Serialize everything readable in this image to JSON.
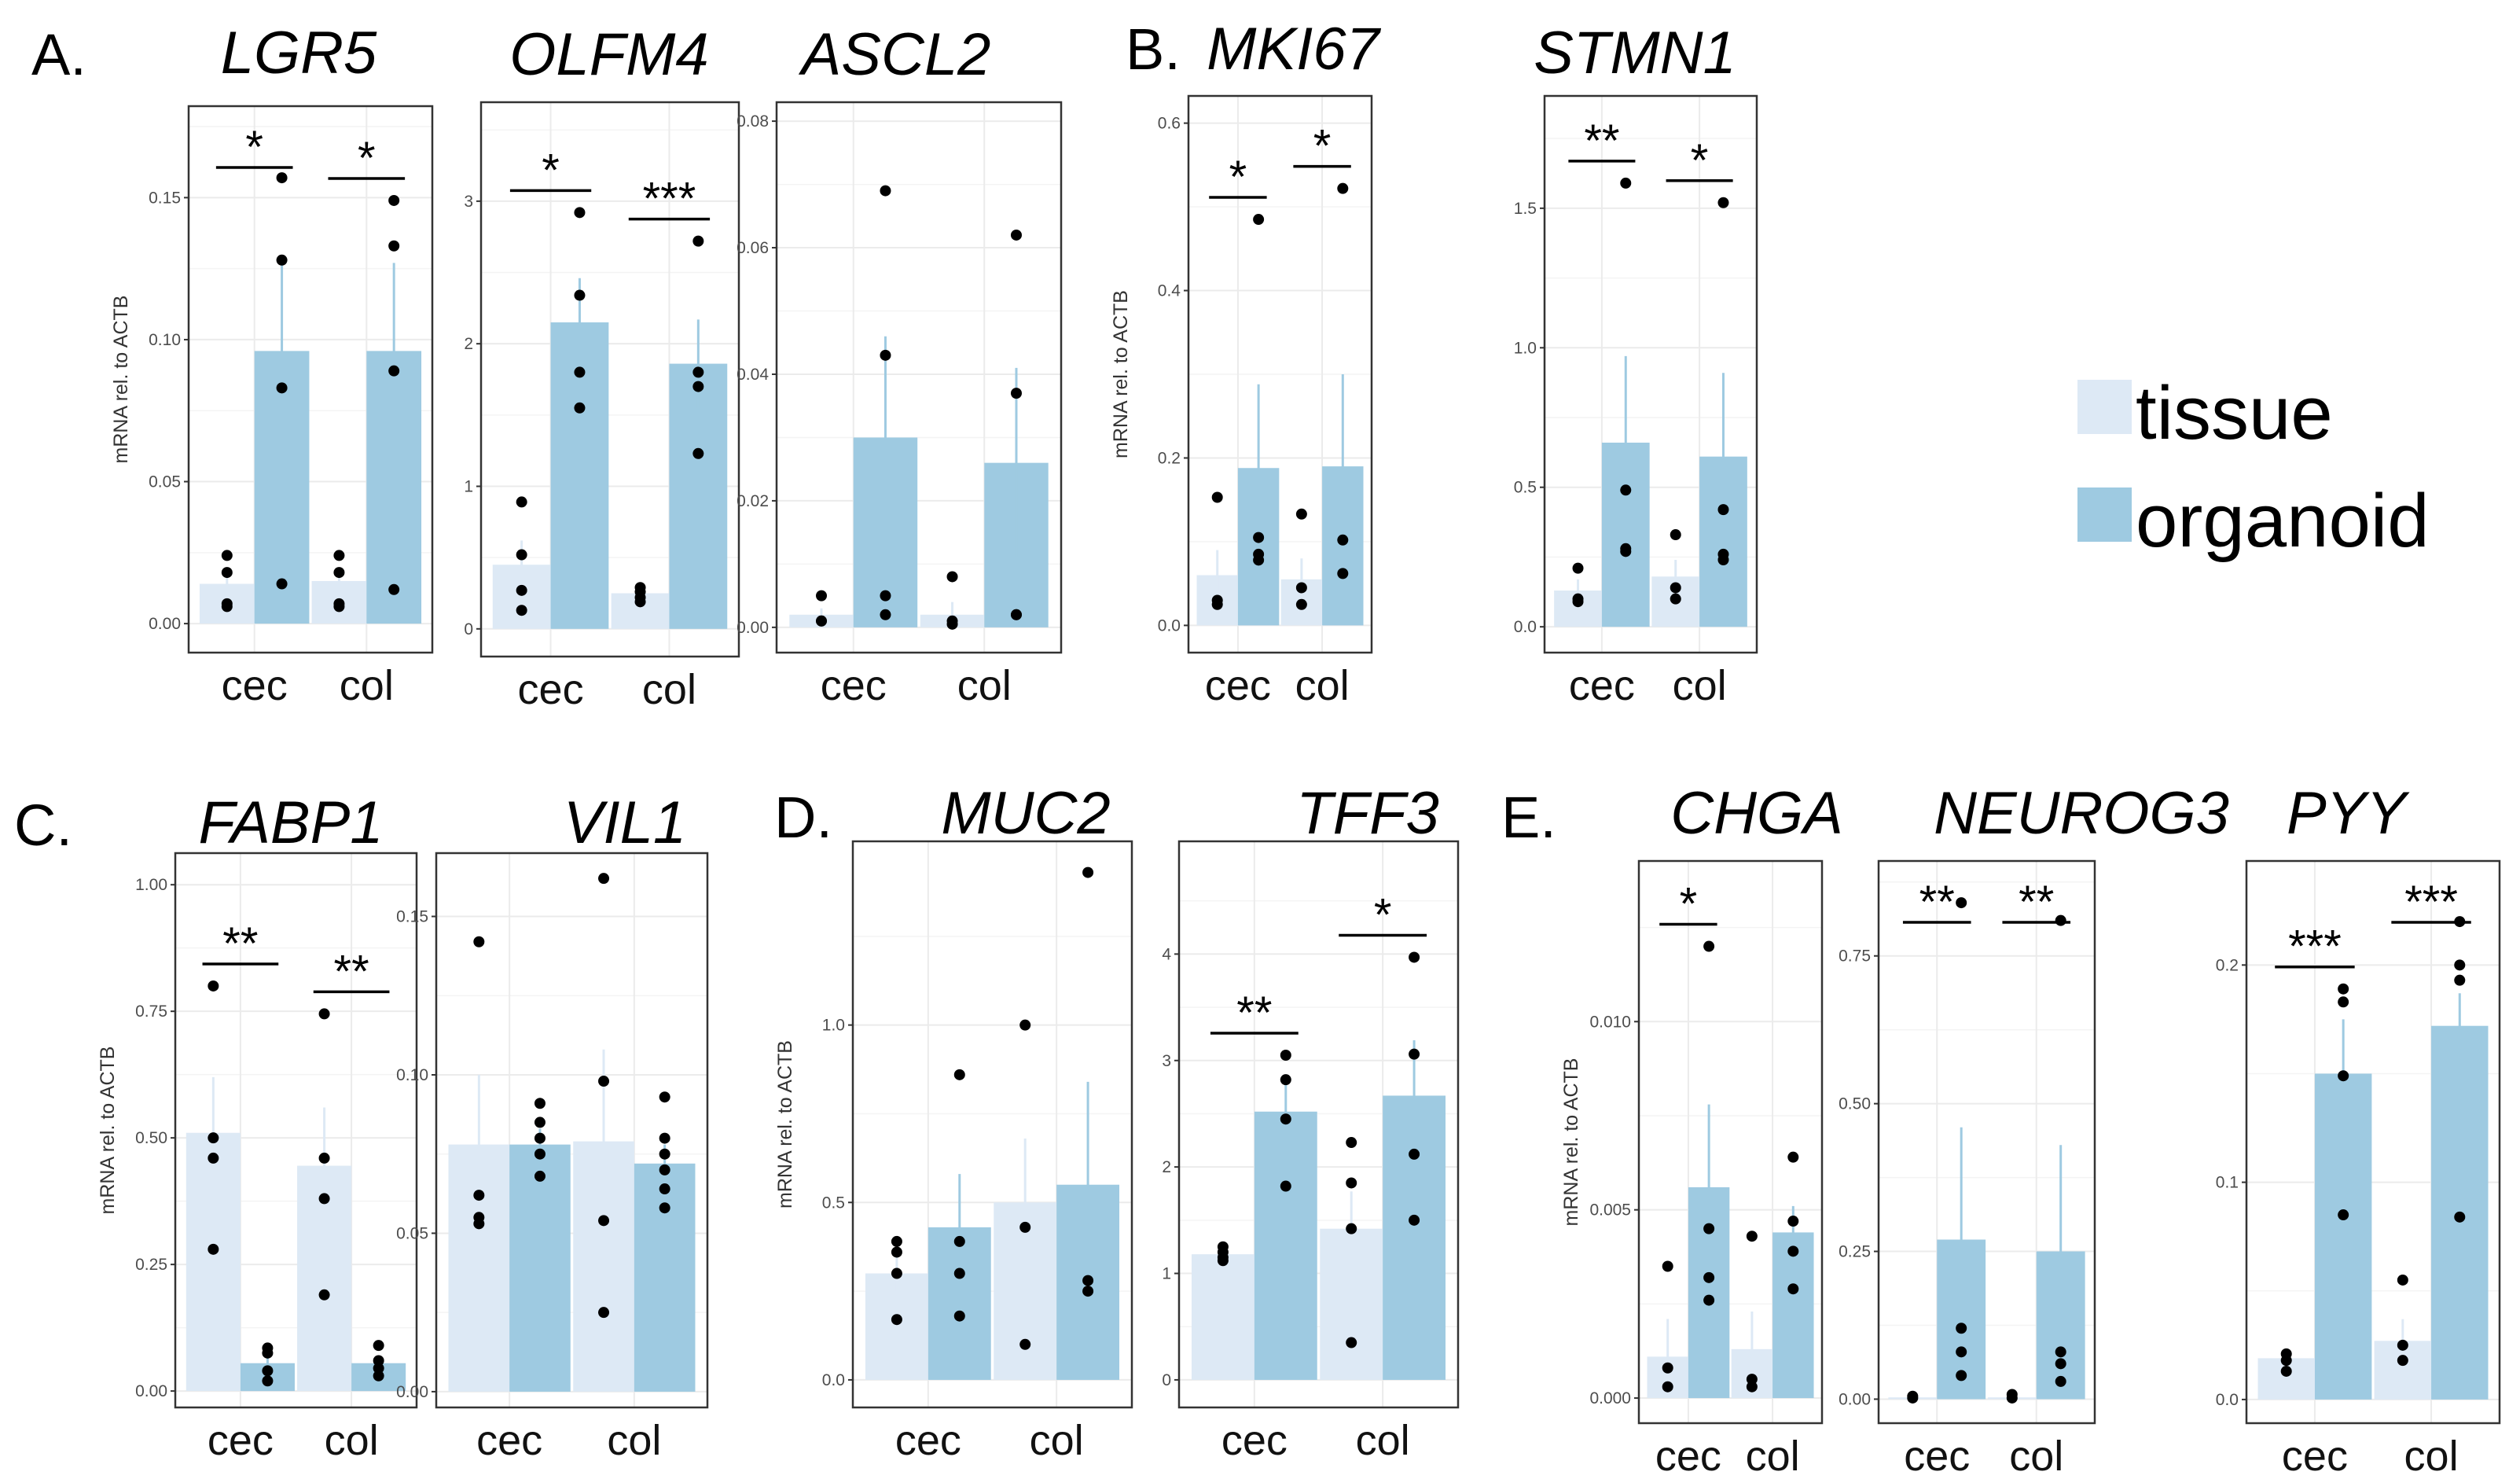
{
  "colors": {
    "tissue": "#dde9f5",
    "organoid": "#9ecae1",
    "errorbar_tissue": "#dde9f5",
    "errorbar_organoid": "#9ecae1",
    "point": "#000000",
    "grid": "#ebebeb",
    "frame": "#333333"
  },
  "legend": {
    "items": [
      {
        "label": "tissue",
        "color": "#dde9f5"
      },
      {
        "label": "organoid",
        "color": "#9ecae1"
      }
    ]
  },
  "panel_letters": [
    "A.",
    "B.",
    "C.",
    "D.",
    "E."
  ],
  "chart_data": [
    {
      "type": "bar",
      "title": "LGR5",
      "ylabel": "mRNA rel. to ACTB",
      "categories": [
        "cec",
        "col"
      ],
      "ylim": [
        -0.008,
        0.18
      ],
      "yticks": [
        0.0,
        0.05,
        0.1,
        0.15
      ],
      "yticklabels": [
        "0.00",
        "0.05",
        "0.10",
        "0.15"
      ],
      "series": [
        {
          "name": "tissue",
          "values": [
            0.014,
            0.015
          ],
          "error": [
            0.004,
            0.004
          ]
        },
        {
          "name": "organoid",
          "values": [
            0.096,
            0.096
          ],
          "error": [
            0.032,
            0.031
          ]
        }
      ],
      "points": {
        "tissue": [
          [
            0.024,
            0.018,
            0.007,
            0.006
          ],
          [
            0.024,
            0.018,
            0.007,
            0.006
          ]
        ],
        "organoid": [
          [
            0.157,
            0.128,
            0.083,
            0.014
          ],
          [
            0.149,
            0.133,
            0.089,
            0.012
          ]
        ]
      },
      "significance": [
        "*",
        "*"
      ]
    },
    {
      "type": "bar",
      "title": "OLFM4",
      "ylabel": "",
      "categories": [
        "cec",
        "col"
      ],
      "ylim": [
        -0.15,
        3.65
      ],
      "yticks": [
        0,
        1,
        2,
        3
      ],
      "yticklabels": [
        "0",
        "1",
        "2",
        "3"
      ],
      "series": [
        {
          "name": "tissue",
          "values": [
            0.45,
            0.25
          ],
          "error": [
            0.17,
            0.04
          ]
        },
        {
          "name": "organoid",
          "values": [
            2.15,
            1.86
          ],
          "error": [
            0.31,
            0.31
          ]
        }
      ],
      "points": {
        "tissue": [
          [
            0.89,
            0.52,
            0.27,
            0.13
          ],
          [
            0.29,
            0.26,
            0.22,
            0.19
          ]
        ],
        "organoid": [
          [
            2.92,
            2.34,
            1.8,
            1.55
          ],
          [
            2.72,
            1.8,
            1.7,
            1.23
          ]
        ]
      },
      "significance": [
        "*",
        "***"
      ]
    },
    {
      "type": "bar",
      "title": "ASCL2",
      "ylabel": "",
      "categories": [
        "cec",
        "col"
      ],
      "ylim": [
        -0.003,
        0.082
      ],
      "yticks": [
        0.0,
        0.02,
        0.04,
        0.06,
        0.08
      ],
      "yticklabels": [
        "0.00",
        "0.02",
        "0.04",
        "0.06",
        "0.08"
      ],
      "series": [
        {
          "name": "tissue",
          "values": [
            0.002,
            0.002
          ],
          "error": [
            0.001,
            0.002
          ]
        },
        {
          "name": "organoid",
          "values": [
            0.03,
            0.026
          ],
          "error": [
            0.016,
            0.015
          ]
        }
      ],
      "points": {
        "tissue": [
          [
            0.005,
            0.001,
            0.001
          ],
          [
            0.008,
            0.001,
            0.0005
          ]
        ],
        "organoid": [
          [
            0.069,
            0.043,
            0.005,
            0.002
          ],
          [
            0.062,
            0.037,
            0.002,
            0.002
          ]
        ]
      },
      "significance": []
    },
    {
      "type": "bar",
      "title": "MKI67",
      "ylabel": "mRNA rel. to ACTB",
      "categories": [
        "cec",
        "col"
      ],
      "ylim": [
        -0.025,
        0.625
      ],
      "yticks": [
        0.0,
        0.2,
        0.4,
        0.6
      ],
      "yticklabels": [
        "0.0",
        "0.2",
        "0.4",
        "0.6"
      ],
      "series": [
        {
          "name": "tissue",
          "values": [
            0.06,
            0.055
          ],
          "error": [
            0.03,
            0.025
          ]
        },
        {
          "name": "organoid",
          "values": [
            0.188,
            0.19
          ],
          "error": [
            0.1,
            0.11
          ]
        }
      ],
      "points": {
        "tissue": [
          [
            0.153,
            0.03,
            0.025
          ],
          [
            0.133,
            0.045,
            0.025
          ]
        ],
        "organoid": [
          [
            0.485,
            0.105,
            0.085,
            0.078
          ],
          [
            0.522,
            0.102,
            0.062
          ]
        ]
      },
      "significance": [
        "*",
        "*"
      ]
    },
    {
      "type": "bar",
      "title": "STMN1",
      "ylabel": "",
      "categories": [
        "cec",
        "col"
      ],
      "ylim": [
        -0.07,
        1.88
      ],
      "yticks": [
        0.0,
        0.5,
        1.0,
        1.5
      ],
      "yticklabels": [
        "0.0",
        "0.5",
        "1.0",
        "1.5"
      ],
      "series": [
        {
          "name": "tissue",
          "values": [
            0.13,
            0.18
          ],
          "error": [
            0.04,
            0.06
          ]
        },
        {
          "name": "organoid",
          "values": [
            0.66,
            0.61
          ],
          "error": [
            0.31,
            0.3
          ]
        }
      ],
      "points": {
        "tissue": [
          [
            0.21,
            0.1,
            0.09
          ],
          [
            0.33,
            0.14,
            0.1
          ]
        ],
        "organoid": [
          [
            1.59,
            0.49,
            0.28,
            0.27
          ],
          [
            1.52,
            0.42,
            0.26,
            0.24
          ]
        ]
      },
      "significance": [
        "**",
        "*"
      ]
    },
    {
      "type": "bar",
      "title": "FABP1",
      "ylabel": "mRNA rel. to ACTB",
      "categories": [
        "cec",
        "col"
      ],
      "ylim": [
        -0.02,
        1.05
      ],
      "yticks": [
        0.0,
        0.25,
        0.5,
        0.75,
        1.0
      ],
      "yticklabels": [
        "0.00",
        "0.25",
        "0.50",
        "0.75",
        "1.00"
      ],
      "series": [
        {
          "name": "tissue",
          "values": [
            0.51,
            0.445
          ],
          "error": [
            0.11,
            0.115
          ]
        },
        {
          "name": "organoid",
          "values": [
            0.055,
            0.055
          ],
          "error": [
            0.01,
            0.01
          ]
        }
      ],
      "points": {
        "tissue": [
          [
            0.8,
            0.5,
            0.46,
            0.28
          ],
          [
            0.745,
            0.46,
            0.38,
            0.19
          ]
        ],
        "organoid": [
          [
            0.085,
            0.075,
            0.04,
            0.02
          ],
          [
            0.09,
            0.06,
            0.045,
            0.03
          ]
        ]
      },
      "significance": [
        "**",
        "**"
      ]
    },
    {
      "type": "bar",
      "title": "VIL1",
      "ylabel": "",
      "categories": [
        "cec",
        "col"
      ],
      "ylim": [
        -0.003,
        0.168
      ],
      "yticks": [
        0.0,
        0.05,
        0.1,
        0.15
      ],
      "yticklabels": [
        "0.00",
        "0.05",
        "0.10",
        "0.15"
      ],
      "series": [
        {
          "name": "tissue",
          "values": [
            0.078,
            0.079
          ],
          "error": [
            0.022,
            0.029
          ]
        },
        {
          "name": "organoid",
          "values": [
            0.078,
            0.072
          ],
          "error": [
            0.005,
            0.006
          ]
        }
      ],
      "points": {
        "tissue": [
          [
            0.142,
            0.062,
            0.055,
            0.053
          ],
          [
            0.162,
            0.098,
            0.054,
            0.025
          ]
        ],
        "organoid": [
          [
            0.091,
            0.085,
            0.08,
            0.075,
            0.068
          ],
          [
            0.093,
            0.08,
            0.075,
            0.07,
            0.064,
            0.058
          ]
        ]
      },
      "significance": []
    },
    {
      "type": "bar",
      "title": "MUC2",
      "ylabel": "mRNA rel. to ACTB",
      "categories": [
        "cec",
        "col"
      ],
      "ylim": [
        -0.06,
        1.5
      ],
      "yticks": [
        0.0,
        0.5,
        1.0
      ],
      "yticklabels": [
        "0.0",
        "0.5",
        "1.0"
      ],
      "series": [
        {
          "name": "tissue",
          "values": [
            0.3,
            0.5
          ],
          "error": [
            0.05,
            0.18
          ]
        },
        {
          "name": "organoid",
          "values": [
            0.43,
            0.55
          ],
          "error": [
            0.15,
            0.29
          ]
        }
      ],
      "points": {
        "tissue": [
          [
            0.39,
            0.36,
            0.3,
            0.17
          ],
          [
            1.0,
            0.43,
            0.1
          ]
        ],
        "organoid": [
          [
            0.86,
            0.39,
            0.3,
            0.18
          ],
          [
            1.43,
            0.28,
            0.25
          ]
        ]
      },
      "significance": []
    },
    {
      "type": "bar",
      "title": "TFF3",
      "ylabel": "",
      "categories": [
        "cec",
        "col"
      ],
      "ylim": [
        -0.2,
        5.0
      ],
      "yticks": [
        0,
        1,
        2,
        3,
        4
      ],
      "yticklabels": [
        "0",
        "1",
        "2",
        "3",
        "4"
      ],
      "series": [
        {
          "name": "tissue",
          "values": [
            1.18,
            1.42
          ],
          "error": [
            0.05,
            0.35
          ]
        },
        {
          "name": "organoid",
          "values": [
            2.52,
            2.67
          ],
          "error": [
            0.31,
            0.52
          ]
        }
      ],
      "points": {
        "tissue": [
          [
            1.25,
            1.2,
            1.15,
            1.12
          ],
          [
            2.23,
            1.85,
            1.42,
            0.35
          ]
        ],
        "organoid": [
          [
            3.05,
            2.82,
            2.45,
            1.82
          ],
          [
            3.97,
            3.06,
            2.12,
            1.5
          ]
        ]
      },
      "significance": [
        "**",
        "*"
      ]
    },
    {
      "type": "bar",
      "title": "CHGA",
      "ylabel": "mRNA rel. to ACTB",
      "categories": [
        "cec",
        "col"
      ],
      "ylim": [
        -0.0005,
        0.0141
      ],
      "yticks": [
        0.0,
        0.005,
        0.01
      ],
      "yticklabels": [
        "0.000",
        "0.005",
        "0.010"
      ],
      "series": [
        {
          "name": "tissue",
          "values": [
            0.0011,
            0.0013
          ],
          "error": [
            0.001,
            0.001
          ]
        },
        {
          "name": "organoid",
          "values": [
            0.0056,
            0.0044
          ],
          "error": [
            0.0022,
            0.0007
          ]
        }
      ],
      "points": {
        "tissue": [
          [
            0.0035,
            0.0008,
            0.0003
          ],
          [
            0.0043,
            0.0005,
            0.0003
          ]
        ],
        "organoid": [
          [
            0.012,
            0.0045,
            0.0032,
            0.0026
          ],
          [
            0.0064,
            0.0047,
            0.0039,
            0.0029
          ]
        ]
      },
      "significance": [
        "*"
      ]
    },
    {
      "type": "bar",
      "title": "NEUROG3",
      "ylabel": "",
      "categories": [
        "cec",
        "col"
      ],
      "ylim": [
        -0.03,
        0.9
      ],
      "yticks": [
        0.0,
        0.25,
        0.5,
        0.75
      ],
      "yticklabels": [
        "0.00",
        "0.25",
        "0.50",
        "0.75"
      ],
      "series": [
        {
          "name": "tissue",
          "values": [
            0.003,
            0.003
          ],
          "error": [
            0.001,
            0.002
          ]
        },
        {
          "name": "organoid",
          "values": [
            0.27,
            0.25
          ],
          "error": [
            0.19,
            0.18
          ]
        }
      ],
      "points": {
        "tissue": [
          [
            0.005,
            0.002
          ],
          [
            0.008,
            0.002
          ]
        ],
        "organoid": [
          [
            0.84,
            0.12,
            0.08,
            0.04
          ],
          [
            0.81,
            0.08,
            0.06,
            0.03
          ]
        ]
      },
      "significance": [
        "**",
        "**"
      ]
    },
    {
      "type": "bar",
      "title": "PYY",
      "ylabel": "",
      "categories": [
        "cec",
        "col"
      ],
      "ylim": [
        -0.008,
        0.245
      ],
      "yticks": [
        0.0,
        0.1,
        0.2
      ],
      "yticklabels": [
        "0.0",
        "0.1",
        "0.2"
      ],
      "series": [
        {
          "name": "tissue",
          "values": [
            0.019,
            0.027
          ],
          "error": [
            0.002,
            0.01
          ]
        },
        {
          "name": "organoid",
          "values": [
            0.15,
            0.172
          ],
          "error": [
            0.025,
            0.015
          ]
        }
      ],
      "points": {
        "tissue": [
          [
            0.021,
            0.018,
            0.013
          ],
          [
            0.055,
            0.025,
            0.018
          ]
        ],
        "organoid": [
          [
            0.189,
            0.183,
            0.149,
            0.085
          ],
          [
            0.22,
            0.2,
            0.193,
            0.084
          ]
        ]
      },
      "significance": [
        "***",
        "***"
      ]
    }
  ]
}
